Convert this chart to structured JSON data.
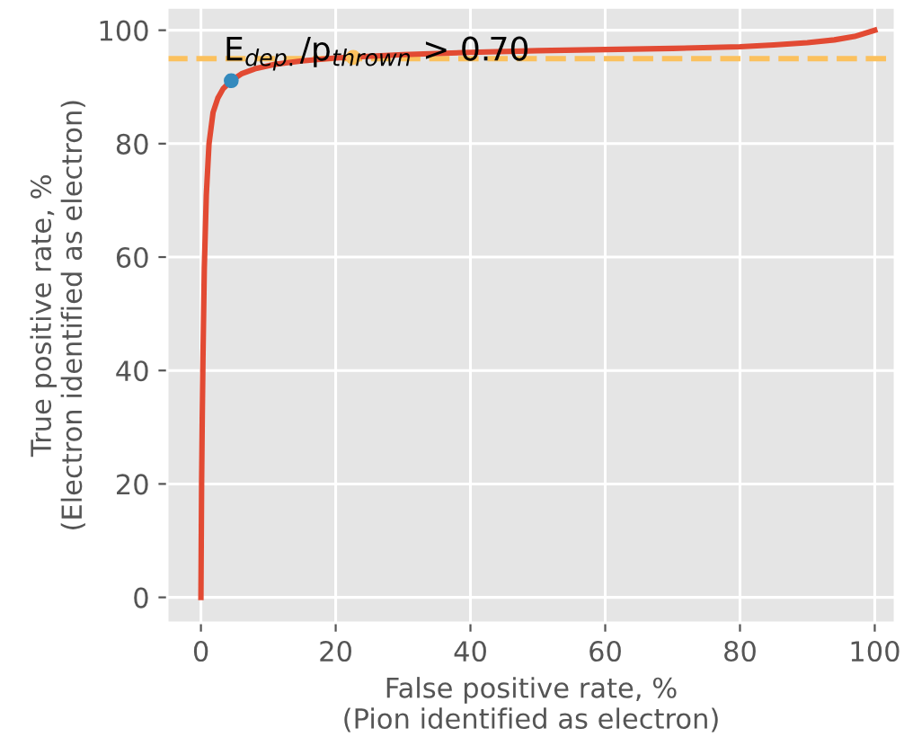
{
  "chart_data": {
    "type": "line",
    "xlabel": "False positive rate, %\n(Pion identified as electron)",
    "ylabel": "True positive rate, %\n(Electron identified as electron)",
    "series": [
      {
        "color": "#e24a33",
        "x": [
          0,
          0.1,
          0.2,
          0.3,
          0.5,
          0.8,
          1.2,
          1.8,
          2.5,
          3.3,
          4.5,
          6,
          8,
          11,
          15,
          20,
          30,
          40,
          50,
          60,
          70,
          80,
          85,
          90,
          94,
          97,
          100
        ],
        "values": [
          0,
          20,
          32,
          42,
          58,
          71,
          80,
          85.5,
          88,
          89.7,
          91.1,
          92.3,
          93.2,
          94,
          94.6,
          95.1,
          95.7,
          96.1,
          96.4,
          96.6,
          96.8,
          97.1,
          97.4,
          97.8,
          98.3,
          98.9,
          100
        ]
      },
      {
        "type": "scatter",
        "color": "#348abd",
        "x": [
          4.5
        ],
        "values": [
          91.1
        ]
      },
      {
        "type": "scatter",
        "color": "#fbc15e",
        "x": [
          22.6
        ],
        "values": [
          95.2
        ]
      }
    ],
    "ref_lines": [
      {
        "axis": "y",
        "value": 95,
        "color": "#fbc15e",
        "line_style": "dashed"
      }
    ],
    "annotations": [
      {
        "text": "E$_{dep.}$/p$_{thrown}$ > 0.70",
        "x": 4.5,
        "y": 91.1
      }
    ],
    "xlim": [
      -5,
      103
    ],
    "ylim": [
      -4.5,
      104
    ],
    "xticks": [
      0,
      20,
      40,
      60,
      80,
      100
    ],
    "yticks": [
      0,
      20,
      40,
      60,
      80,
      100
    ],
    "grid": true
  }
}
